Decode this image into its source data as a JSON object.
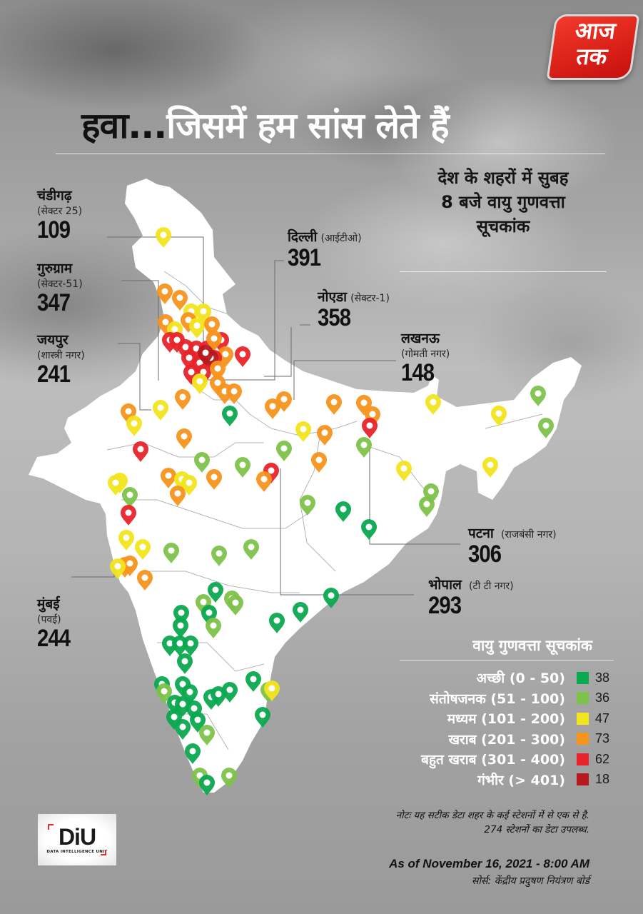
{
  "brand": {
    "logo_line1": "आज",
    "logo_line2": "तक",
    "logo_color": "#e2231a"
  },
  "header": {
    "title_dark": "हवा...",
    "title_light": "जिसमें हम सांस लेते हैं",
    "subtitle_line1": "देश के शहरों में सुबह",
    "subtitle_line2": "8 बजे वायु गुणवत्ता",
    "subtitle_line3": "सूचकांक"
  },
  "cities": [
    {
      "name": "चंडीगढ़",
      "station": "(सेक्टर 25)",
      "aqi": "109"
    },
    {
      "name": "गुरुग्राम",
      "station": "(सेक्टर-51)",
      "aqi": "347"
    },
    {
      "name": "जयपुर",
      "station": "(शास्त्री नगर)",
      "aqi": "241"
    },
    {
      "name": "दिल्ली",
      "station": "(आईटीओ)",
      "aqi": "391"
    },
    {
      "name": "नोएडा",
      "station": "(सेक्टर-1)",
      "aqi": "358"
    },
    {
      "name": "लखनऊ",
      "station": "(गोमती नगर)",
      "aqi": "148"
    },
    {
      "name": "पटना",
      "station": "(राजबंसी नगर)",
      "aqi": "306"
    },
    {
      "name": "भोपाल",
      "station": "(टी टी नगर)",
      "aqi": "293"
    },
    {
      "name": "मुंबई",
      "station": "(पवई)",
      "aqi": "244"
    }
  ],
  "legend": {
    "title": "वायु गुणवत्ता सूचकांक",
    "items": [
      {
        "label": "अच्छी (0 - 50)",
        "color": "#0aa84f",
        "count": "38"
      },
      {
        "label": "संतोषजनक (51 - 100)",
        "color": "#7dc24b",
        "count": "36"
      },
      {
        "label": "मध्यम (101 - 200)",
        "color": "#f2e51c",
        "count": "47"
      },
      {
        "label": "खराब (201 - 300)",
        "color": "#f7941d",
        "count": "73"
      },
      {
        "label": "बहुत खराब (301 - 400)",
        "color": "#e8232a",
        "count": "62"
      },
      {
        "label": "गंभीर (> 401)",
        "color": "#b5191f",
        "count": "18"
      }
    ]
  },
  "footer": {
    "note_line1": "नोटः यह सटीक डेटा शहर के कई स्टेशनों में से एक से है.",
    "note_line2": "274 स्टेशनों का डेटा उपलब्ध.",
    "as_of": "As of November 16, 2021 - 8:00 AM",
    "source": "सोर्स: केंद्रीय प्रदुषण नियंत्रण बोर्ड",
    "diu_logo": "DiU",
    "diu_text": "DATA INTELLIGENCE UNIT"
  },
  "map": {
    "pins": [
      [
        "y",
        229,
        333
      ],
      [
        "o",
        231,
        412
      ],
      [
        "o",
        252,
        421
      ],
      [
        "y",
        268,
        440
      ],
      [
        "y",
        285,
        440
      ],
      [
        "o",
        264,
        452
      ],
      [
        "y",
        276,
        460
      ],
      [
        "o",
        297,
        458
      ],
      [
        "o",
        232,
        455
      ],
      [
        "y",
        245,
        465
      ],
      [
        "r",
        238,
        480
      ],
      [
        "r",
        248,
        480
      ],
      [
        "r",
        260,
        490
      ],
      [
        "r",
        275,
        492
      ],
      [
        "r",
        290,
        492
      ],
      [
        "r",
        310,
        480
      ],
      [
        "o",
        300,
        478
      ],
      [
        "o",
        316,
        500
      ],
      [
        "r",
        265,
        505
      ],
      [
        "r",
        280,
        512
      ],
      [
        "r",
        300,
        505
      ],
      [
        "dr",
        295,
        505
      ],
      [
        "dr",
        288,
        498
      ],
      [
        "r",
        268,
        525
      ],
      [
        "r",
        285,
        525
      ],
      [
        "o",
        305,
        520
      ],
      [
        "r",
        340,
        500
      ],
      [
        "y",
        280,
        538
      ],
      [
        "o",
        305,
        540
      ],
      [
        "o",
        315,
        552
      ],
      [
        "o",
        328,
        552
      ],
      [
        "o",
        256,
        560
      ],
      [
        "y",
        225,
        575
      ],
      [
        "o",
        180,
        580
      ],
      [
        "y",
        188,
        597
      ],
      [
        "g",
        322,
        583
      ],
      [
        "o",
        382,
        573
      ],
      [
        "o",
        398,
        563
      ],
      [
        "o",
        468,
        567
      ],
      [
        "o",
        510,
        568
      ],
      [
        "o",
        522,
        584
      ],
      [
        "r",
        518,
        600
      ],
      [
        "lg",
        510,
        627
      ],
      [
        "y",
        425,
        605
      ],
      [
        "o",
        455,
        610
      ],
      [
        "o",
        447,
        648
      ],
      [
        "lg",
        398,
        632
      ],
      [
        "lg",
        340,
        655
      ],
      [
        "lg",
        283,
        648
      ],
      [
        "r",
        380,
        663
      ],
      [
        "o",
        370,
        675
      ],
      [
        "r",
        197,
        633
      ],
      [
        "o",
        258,
        615
      ],
      [
        "y",
        168,
        677
      ],
      [
        "y",
        162,
        680
      ],
      [
        "lg",
        182,
        697
      ],
      [
        "o",
        236,
        670
      ],
      [
        "y",
        255,
        675
      ],
      [
        "y",
        265,
        680
      ],
      [
        "o",
        249,
        695
      ],
      [
        "o",
        300,
        672
      ],
      [
        "r",
        180,
        722
      ],
      [
        "y",
        177,
        757
      ],
      [
        "y",
        200,
        770
      ],
      [
        "o",
        175,
        795
      ],
      [
        "o",
        182,
        793
      ],
      [
        "y",
        165,
        797
      ],
      [
        "o",
        203,
        813
      ],
      [
        "lg",
        240,
        775
      ],
      [
        "lg",
        307,
        779
      ],
      [
        "lg",
        352,
        770
      ],
      [
        "lg",
        431,
        708
      ],
      [
        "g",
        481,
        717
      ],
      [
        "g",
        517,
        742
      ],
      [
        "y",
        607,
        567
      ],
      [
        "y",
        566,
        660
      ],
      [
        "lg",
        604,
        692
      ],
      [
        "lg",
        598,
        710
      ],
      [
        "y",
        699,
        583
      ],
      [
        "lg",
        754,
        555
      ],
      [
        "lg",
        765,
        600
      ],
      [
        "y",
        687,
        655
      ],
      [
        "g",
        302,
        830
      ],
      [
        "lg",
        285,
        847
      ],
      [
        "lg",
        325,
        842
      ],
      [
        "lg",
        330,
        848
      ],
      [
        "g",
        254,
        862
      ],
      [
        "g",
        293,
        862
      ],
      [
        "lg",
        299,
        880
      ],
      [
        "g",
        253,
        880
      ],
      [
        "g",
        238,
        905
      ],
      [
        "g",
        252,
        905
      ],
      [
        "g",
        267,
        905
      ],
      [
        "g",
        259,
        930
      ],
      [
        "g",
        464,
        838
      ],
      [
        "g",
        421,
        858
      ],
      [
        "g",
        388,
        873
      ],
      [
        "g",
        227,
        962
      ],
      [
        "lg",
        230,
        972
      ],
      [
        "g",
        256,
        962
      ],
      [
        "g",
        266,
        973
      ],
      [
        "g",
        245,
        988
      ],
      [
        "g",
        256,
        990
      ],
      [
        "g",
        272,
        996
      ],
      [
        "g",
        296,
        980
      ],
      [
        "g",
        306,
        976
      ],
      [
        "g",
        322,
        970
      ],
      [
        "g",
        355,
        955
      ],
      [
        "lg",
        376,
        970
      ],
      [
        "y",
        381,
        968
      ],
      [
        "g",
        368,
        1005
      ],
      [
        "g",
        244,
        1008
      ],
      [
        "g",
        256,
        1022
      ],
      [
        "g",
        277,
        1012
      ],
      [
        "lg",
        290,
        1030
      ],
      [
        "g",
        270,
        1056
      ],
      [
        "lg",
        280,
        1090
      ],
      [
        "g",
        290,
        1100
      ],
      [
        "lg",
        321,
        1090
      ]
    ]
  }
}
